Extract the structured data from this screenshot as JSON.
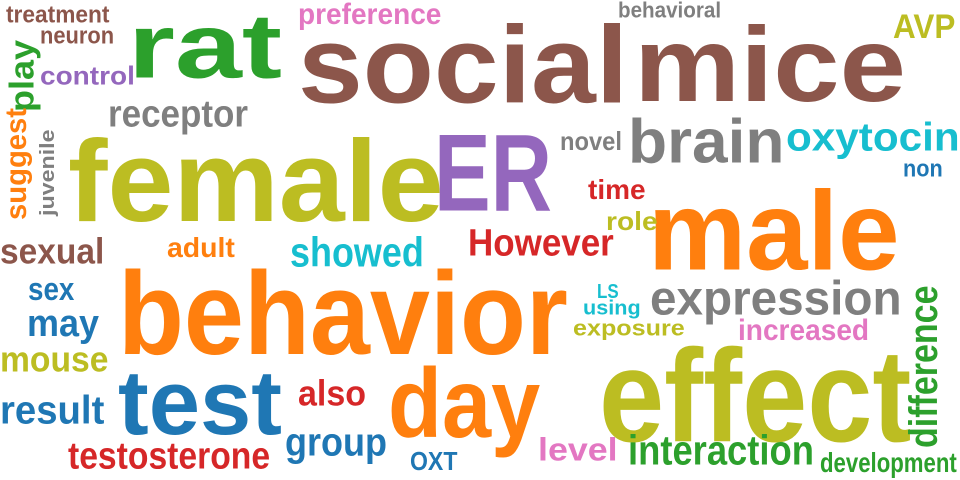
{
  "word_cloud": {
    "words": [
      {
        "id": "social",
        "text": "social",
        "color": "#8c564b"
      },
      {
        "id": "female",
        "text": "female",
        "color": "#bcbd22"
      },
      {
        "id": "behavior",
        "text": "behavior",
        "color": "#ff7f0e"
      },
      {
        "id": "mice",
        "text": "mice",
        "color": "#8c564b"
      },
      {
        "id": "rat",
        "text": "rat",
        "color": "#2ca02c"
      },
      {
        "id": "male",
        "text": "male",
        "color": "#ff7f0e"
      },
      {
        "id": "ER",
        "text": "ER",
        "color": "#9467bd"
      },
      {
        "id": "effect",
        "text": "effect",
        "color": "#bcbd22"
      },
      {
        "id": "test",
        "text": "test",
        "color": "#1f77b4"
      },
      {
        "id": "day",
        "text": "day",
        "color": "#ff7f0e"
      },
      {
        "id": "brain",
        "text": "brain",
        "color": "#7f7f7f"
      },
      {
        "id": "oxytocin",
        "text": "oxytocin",
        "color": "#17becf"
      },
      {
        "id": "expression",
        "text": "expression",
        "color": "#7f7f7f"
      },
      {
        "id": "interaction",
        "text": "interaction",
        "color": "#2ca02c"
      },
      {
        "id": "receptor",
        "text": "receptor",
        "color": "#7f7f7f"
      },
      {
        "id": "However",
        "text": "However",
        "color": "#d62728"
      },
      {
        "id": "showed",
        "text": "showed",
        "color": "#17becf"
      },
      {
        "id": "testosterone",
        "text": "testosterone",
        "color": "#d62728"
      },
      {
        "id": "group",
        "text": "group",
        "color": "#1f77b4"
      },
      {
        "id": "result",
        "text": "result",
        "color": "#1f77b4"
      },
      {
        "id": "mouse",
        "text": "mouse",
        "color": "#bcbd22"
      },
      {
        "id": "may",
        "text": "may",
        "color": "#1f77b4"
      },
      {
        "id": "sex",
        "text": "sex",
        "color": "#1f77b4"
      },
      {
        "id": "sexual",
        "text": "sexual",
        "color": "#8c564b"
      },
      {
        "id": "also",
        "text": "also",
        "color": "#d62728"
      },
      {
        "id": "preference",
        "text": "preference",
        "color": "#e377c2"
      },
      {
        "id": "AVP",
        "text": "AVP",
        "color": "#bcbd22"
      },
      {
        "id": "increased",
        "text": "increased",
        "color": "#e377c2"
      },
      {
        "id": "level",
        "text": "level",
        "color": "#e377c2"
      },
      {
        "id": "difference",
        "text": "difference",
        "color": "#2ca02c"
      },
      {
        "id": "development",
        "text": "development",
        "color": "#2ca02c"
      },
      {
        "id": "control",
        "text": "control",
        "color": "#9467bd"
      },
      {
        "id": "treatment",
        "text": "treatment",
        "color": "#8c564b"
      },
      {
        "id": "neuron",
        "text": "neuron",
        "color": "#8c564b"
      },
      {
        "id": "play",
        "text": "play",
        "color": "#2ca02c"
      },
      {
        "id": "suggest",
        "text": "suggest",
        "color": "#ff7f0e"
      },
      {
        "id": "juvenile",
        "text": "juvenile",
        "color": "#7f7f7f"
      },
      {
        "id": "adult",
        "text": "adult",
        "color": "#ff7f0e"
      },
      {
        "id": "time",
        "text": "time",
        "color": "#d62728"
      },
      {
        "id": "role",
        "text": "role",
        "color": "#bcbd22"
      },
      {
        "id": "novel",
        "text": "novel",
        "color": "#7f7f7f"
      },
      {
        "id": "non",
        "text": "non",
        "color": "#1f77b4"
      },
      {
        "id": "behavioral",
        "text": "behavioral",
        "color": "#7f7f7f"
      },
      {
        "id": "LS",
        "text": "LS",
        "color": "#17becf"
      },
      {
        "id": "using",
        "text": "using",
        "color": "#17becf"
      },
      {
        "id": "exposure",
        "text": "exposure",
        "color": "#bcbd22"
      },
      {
        "id": "OXT",
        "text": "OXT",
        "color": "#1f77b4"
      }
    ]
  }
}
